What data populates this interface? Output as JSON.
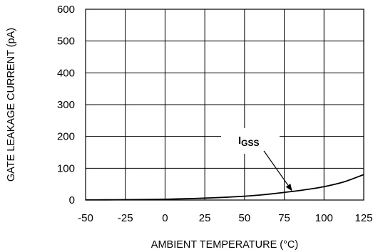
{
  "chart_data": {
    "type": "line",
    "title": "",
    "xlabel": "AMBIENT TEMPERATURE (°C)",
    "ylabel": "GATE LEAKAGE CURRENT (pA)",
    "xlim": [
      -50,
      125
    ],
    "ylim": [
      0,
      600
    ],
    "x_ticks": [
      "-50",
      "-25",
      "0",
      "25",
      "50",
      "75",
      "100",
      "125"
    ],
    "y_ticks": [
      "0",
      "100",
      "200",
      "300",
      "400",
      "500",
      "600"
    ],
    "grid": true,
    "legend": "none",
    "series": [
      {
        "name": "IGSS",
        "x": [
          -50,
          -37.5,
          -25,
          -12.5,
          0,
          12.5,
          25,
          37.5,
          50,
          62.5,
          75,
          87.5,
          100,
          112.5,
          125
        ],
        "y": [
          0.5,
          0.7,
          1,
          1.5,
          2.5,
          4,
          6,
          8.5,
          12,
          17,
          24,
          32,
          42,
          57,
          80
        ]
      }
    ],
    "annotations": [
      {
        "label_main": "I",
        "label_sub": "GSS",
        "target_series": "IGSS",
        "arrow_to": [
          80,
          28
        ]
      }
    ],
    "colors": {
      "line": "#000000",
      "grid": "#000000",
      "background": "#ffffff"
    }
  }
}
